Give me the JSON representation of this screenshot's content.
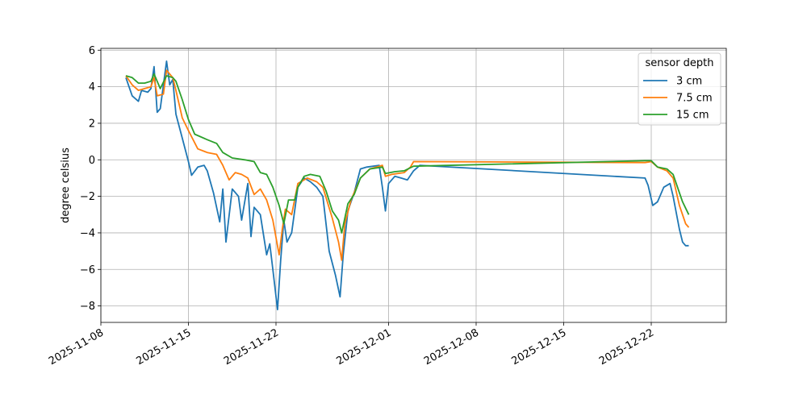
{
  "chart_data": {
    "type": "line",
    "title": "",
    "xlabel": "",
    "ylabel": "degree celsius",
    "x_type": "date",
    "xlim": [
      "2025-11-08",
      "2025-12-28"
    ],
    "ylim": [
      -8.9,
      6.1
    ],
    "xticks": [
      "2025-11-08",
      "2025-11-15",
      "2025-11-22",
      "2025-12-01",
      "2025-12-08",
      "2025-12-15",
      "2025-12-22"
    ],
    "yticks": [
      -8,
      -6,
      -4,
      -2,
      0,
      2,
      4,
      6
    ],
    "grid": true,
    "legend": {
      "title": "sensor depth",
      "placement": "top-right"
    },
    "series": [
      {
        "name": "3 cm",
        "color": "#1f77b4",
        "points": [
          [
            "2025-11-10T00:00",
            4.5
          ],
          [
            "2025-11-10T12:00",
            3.5
          ],
          [
            "2025-11-11T00:00",
            3.2
          ],
          [
            "2025-11-11T06:00",
            3.8
          ],
          [
            "2025-11-11T18:00",
            3.7
          ],
          [
            "2025-11-12T00:00",
            3.9
          ],
          [
            "2025-11-12T06:00",
            5.1
          ],
          [
            "2025-11-12T12:00",
            2.6
          ],
          [
            "2025-11-12T18:00",
            2.8
          ],
          [
            "2025-11-13T06:00",
            5.4
          ],
          [
            "2025-11-13T12:00",
            4.1
          ],
          [
            "2025-11-13T18:00",
            4.4
          ],
          [
            "2025-11-14T00:00",
            2.5
          ],
          [
            "2025-11-14T12:00",
            1.2
          ],
          [
            "2025-11-15T00:00",
            -0.1
          ],
          [
            "2025-11-15T06:00",
            -0.85
          ],
          [
            "2025-11-15T18:00",
            -0.4
          ],
          [
            "2025-11-16T06:00",
            -0.3
          ],
          [
            "2025-11-16T12:00",
            -0.6
          ],
          [
            "2025-11-17T00:00",
            -1.8
          ],
          [
            "2025-11-17T12:00",
            -3.4
          ],
          [
            "2025-11-17T18:00",
            -1.6
          ],
          [
            "2025-11-18T00:00",
            -4.5
          ],
          [
            "2025-11-18T12:00",
            -1.6
          ],
          [
            "2025-11-19T00:00",
            -2.0
          ],
          [
            "2025-11-19T06:00",
            -3.3
          ],
          [
            "2025-11-19T18:00",
            -1.3
          ],
          [
            "2025-11-20T00:00",
            -4.2
          ],
          [
            "2025-11-20T06:00",
            -2.6
          ],
          [
            "2025-11-20T18:00",
            -3.0
          ],
          [
            "2025-11-21T06:00",
            -5.2
          ],
          [
            "2025-11-21T12:00",
            -4.6
          ],
          [
            "2025-11-21T18:00",
            -6.0
          ],
          [
            "2025-11-22T03:00",
            -8.2
          ],
          [
            "2025-11-22T09:00",
            -5.5
          ],
          [
            "2025-11-22T15:00",
            -3.3
          ],
          [
            "2025-11-22T21:00",
            -4.5
          ],
          [
            "2025-11-23T06:00",
            -4.0
          ],
          [
            "2025-11-23T18:00",
            -1.5
          ],
          [
            "2025-11-24T06:00",
            -1.0
          ],
          [
            "2025-11-24T18:00",
            -1.2
          ],
          [
            "2025-11-25T06:00",
            -1.5
          ],
          [
            "2025-11-25T18:00",
            -2.0
          ],
          [
            "2025-11-26T06:00",
            -5.0
          ],
          [
            "2025-11-26T18:00",
            -6.3
          ],
          [
            "2025-11-27T03:00",
            -7.5
          ],
          [
            "2025-11-27T09:00",
            -5.2
          ],
          [
            "2025-11-27T18:00",
            -2.8
          ],
          [
            "2025-11-28T06:00",
            -1.8
          ],
          [
            "2025-11-28T18:00",
            -0.5
          ],
          [
            "2025-11-29T06:00",
            -0.4
          ],
          [
            "2025-11-30T06:00",
            -0.3
          ],
          [
            "2025-11-30T12:00",
            -1.5
          ],
          [
            "2025-11-30T18:00",
            -2.8
          ],
          [
            "2025-12-01T00:00",
            -1.3
          ],
          [
            "2025-12-01T12:00",
            -0.9
          ],
          [
            "2025-12-02T00:00",
            -1.0
          ],
          [
            "2025-12-02T12:00",
            -1.1
          ],
          [
            "2025-12-03T00:00",
            -0.6
          ],
          [
            "2025-12-03T12:00",
            -0.3
          ],
          [
            "2025-12-21T12:00",
            -1.0
          ],
          [
            "2025-12-21T18:00",
            -1.4
          ],
          [
            "2025-12-22T03:00",
            -2.5
          ],
          [
            "2025-12-22T12:00",
            -2.3
          ],
          [
            "2025-12-23T00:00",
            -1.5
          ],
          [
            "2025-12-23T12:00",
            -1.3
          ],
          [
            "2025-12-23T18:00",
            -2.0
          ],
          [
            "2025-12-24T06:00",
            -3.8
          ],
          [
            "2025-12-24T12:00",
            -4.5
          ],
          [
            "2025-12-24T18:00",
            -4.7
          ],
          [
            "2025-12-25T00:00",
            -4.7
          ]
        ]
      },
      {
        "name": "7.5 cm",
        "color": "#ff7f0e",
        "points": [
          [
            "2025-11-10T00:00",
            4.6
          ],
          [
            "2025-11-10T12:00",
            4.1
          ],
          [
            "2025-11-11T00:00",
            3.8
          ],
          [
            "2025-11-11T12:00",
            3.9
          ],
          [
            "2025-11-12T00:00",
            4.0
          ],
          [
            "2025-11-12T06:00",
            4.5
          ],
          [
            "2025-11-12T12:00",
            3.5
          ],
          [
            "2025-11-13T00:00",
            3.6
          ],
          [
            "2025-11-13T06:00",
            4.9
          ],
          [
            "2025-11-13T18:00",
            4.5
          ],
          [
            "2025-11-14T00:00",
            3.8
          ],
          [
            "2025-11-14T12:00",
            2.3
          ],
          [
            "2025-11-15T00:00",
            1.6
          ],
          [
            "2025-11-15T18:00",
            0.6
          ],
          [
            "2025-11-16T12:00",
            0.4
          ],
          [
            "2025-11-17T06:00",
            0.3
          ],
          [
            "2025-11-17T18:00",
            -0.3
          ],
          [
            "2025-11-18T06:00",
            -1.1
          ],
          [
            "2025-11-18T18:00",
            -0.7
          ],
          [
            "2025-11-19T06:00",
            -0.8
          ],
          [
            "2025-11-19T18:00",
            -1.0
          ],
          [
            "2025-11-20T06:00",
            -1.9
          ],
          [
            "2025-11-20T18:00",
            -1.6
          ],
          [
            "2025-11-21T06:00",
            -2.2
          ],
          [
            "2025-11-21T18:00",
            -3.3
          ],
          [
            "2025-11-22T06:00",
            -5.2
          ],
          [
            "2025-11-22T12:00",
            -3.8
          ],
          [
            "2025-11-22T18:00",
            -2.7
          ],
          [
            "2025-11-23T06:00",
            -3.0
          ],
          [
            "2025-11-23T18:00",
            -1.3
          ],
          [
            "2025-11-24T12:00",
            -1.0
          ],
          [
            "2025-11-25T06:00",
            -1.2
          ],
          [
            "2025-11-25T18:00",
            -1.5
          ],
          [
            "2025-11-26T12:00",
            -3.2
          ],
          [
            "2025-11-27T00:00",
            -4.5
          ],
          [
            "2025-11-27T06:00",
            -5.5
          ],
          [
            "2025-11-27T12:00",
            -3.5
          ],
          [
            "2025-11-28T00:00",
            -2.2
          ],
          [
            "2025-11-28T18:00",
            -1.0
          ],
          [
            "2025-11-29T12:00",
            -0.5
          ],
          [
            "2025-11-30T12:00",
            -0.3
          ],
          [
            "2025-11-30T18:00",
            -0.9
          ],
          [
            "2025-12-01T06:00",
            -0.8
          ],
          [
            "2025-12-02T06:00",
            -0.7
          ],
          [
            "2025-12-02T18:00",
            -0.4
          ],
          [
            "2025-12-03T00:00",
            -0.1
          ],
          [
            "2025-12-21T12:00",
            -0.15
          ],
          [
            "2025-12-22T00:00",
            -0.1
          ],
          [
            "2025-12-22T12:00",
            -0.4
          ],
          [
            "2025-12-23T06:00",
            -0.6
          ],
          [
            "2025-12-23T18:00",
            -1.0
          ],
          [
            "2025-12-24T06:00",
            -2.5
          ],
          [
            "2025-12-24T18:00",
            -3.5
          ],
          [
            "2025-12-25T00:00",
            -3.7
          ]
        ]
      },
      {
        "name": "15 cm",
        "color": "#2ca02c",
        "points": [
          [
            "2025-11-10T00:00",
            4.6
          ],
          [
            "2025-11-10T12:00",
            4.5
          ],
          [
            "2025-11-11T00:00",
            4.2
          ],
          [
            "2025-11-11T12:00",
            4.2
          ],
          [
            "2025-11-12T00:00",
            4.3
          ],
          [
            "2025-11-12T06:00",
            4.7
          ],
          [
            "2025-11-12T18:00",
            3.9
          ],
          [
            "2025-11-13T06:00",
            4.6
          ],
          [
            "2025-11-13T18:00",
            4.5
          ],
          [
            "2025-11-14T00:00",
            4.3
          ],
          [
            "2025-11-14T12:00",
            3.3
          ],
          [
            "2025-11-15T00:00",
            2.2
          ],
          [
            "2025-11-15T12:00",
            1.4
          ],
          [
            "2025-11-16T12:00",
            1.1
          ],
          [
            "2025-11-17T06:00",
            0.9
          ],
          [
            "2025-11-17T18:00",
            0.4
          ],
          [
            "2025-11-18T12:00",
            0.1
          ],
          [
            "2025-11-19T12:00",
            0.0
          ],
          [
            "2025-11-20T06:00",
            -0.1
          ],
          [
            "2025-11-20T18:00",
            -0.7
          ],
          [
            "2025-11-21T06:00",
            -0.8
          ],
          [
            "2025-11-21T18:00",
            -1.5
          ],
          [
            "2025-11-22T06:00",
            -2.5
          ],
          [
            "2025-11-22T15:00",
            -3.5
          ],
          [
            "2025-11-23T00:00",
            -2.2
          ],
          [
            "2025-11-23T12:00",
            -2.2
          ],
          [
            "2025-11-23T18:00",
            -1.5
          ],
          [
            "2025-11-24T06:00",
            -0.9
          ],
          [
            "2025-11-24T18:00",
            -0.8
          ],
          [
            "2025-11-25T12:00",
            -0.9
          ],
          [
            "2025-11-26T00:00",
            -1.7
          ],
          [
            "2025-11-26T12:00",
            -2.8
          ],
          [
            "2025-11-27T00:00",
            -3.3
          ],
          [
            "2025-11-27T06:00",
            -4.0
          ],
          [
            "2025-11-27T18:00",
            -2.4
          ],
          [
            "2025-11-28T06:00",
            -1.9
          ],
          [
            "2025-11-28T18:00",
            -1.0
          ],
          [
            "2025-11-29T12:00",
            -0.5
          ],
          [
            "2025-11-30T12:00",
            -0.4
          ],
          [
            "2025-11-30T18:00",
            -0.75
          ],
          [
            "2025-12-01T12:00",
            -0.65
          ],
          [
            "2025-12-02T06:00",
            -0.6
          ],
          [
            "2025-12-03T00:00",
            -0.35
          ],
          [
            "2025-12-21T12:00",
            -0.05
          ],
          [
            "2025-12-22T00:00",
            -0.05
          ],
          [
            "2025-12-22T12:00",
            -0.4
          ],
          [
            "2025-12-23T06:00",
            -0.5
          ],
          [
            "2025-12-23T18:00",
            -0.8
          ],
          [
            "2025-12-24T12:00",
            -2.3
          ],
          [
            "2025-12-25T00:00",
            -3.0
          ]
        ]
      }
    ]
  }
}
